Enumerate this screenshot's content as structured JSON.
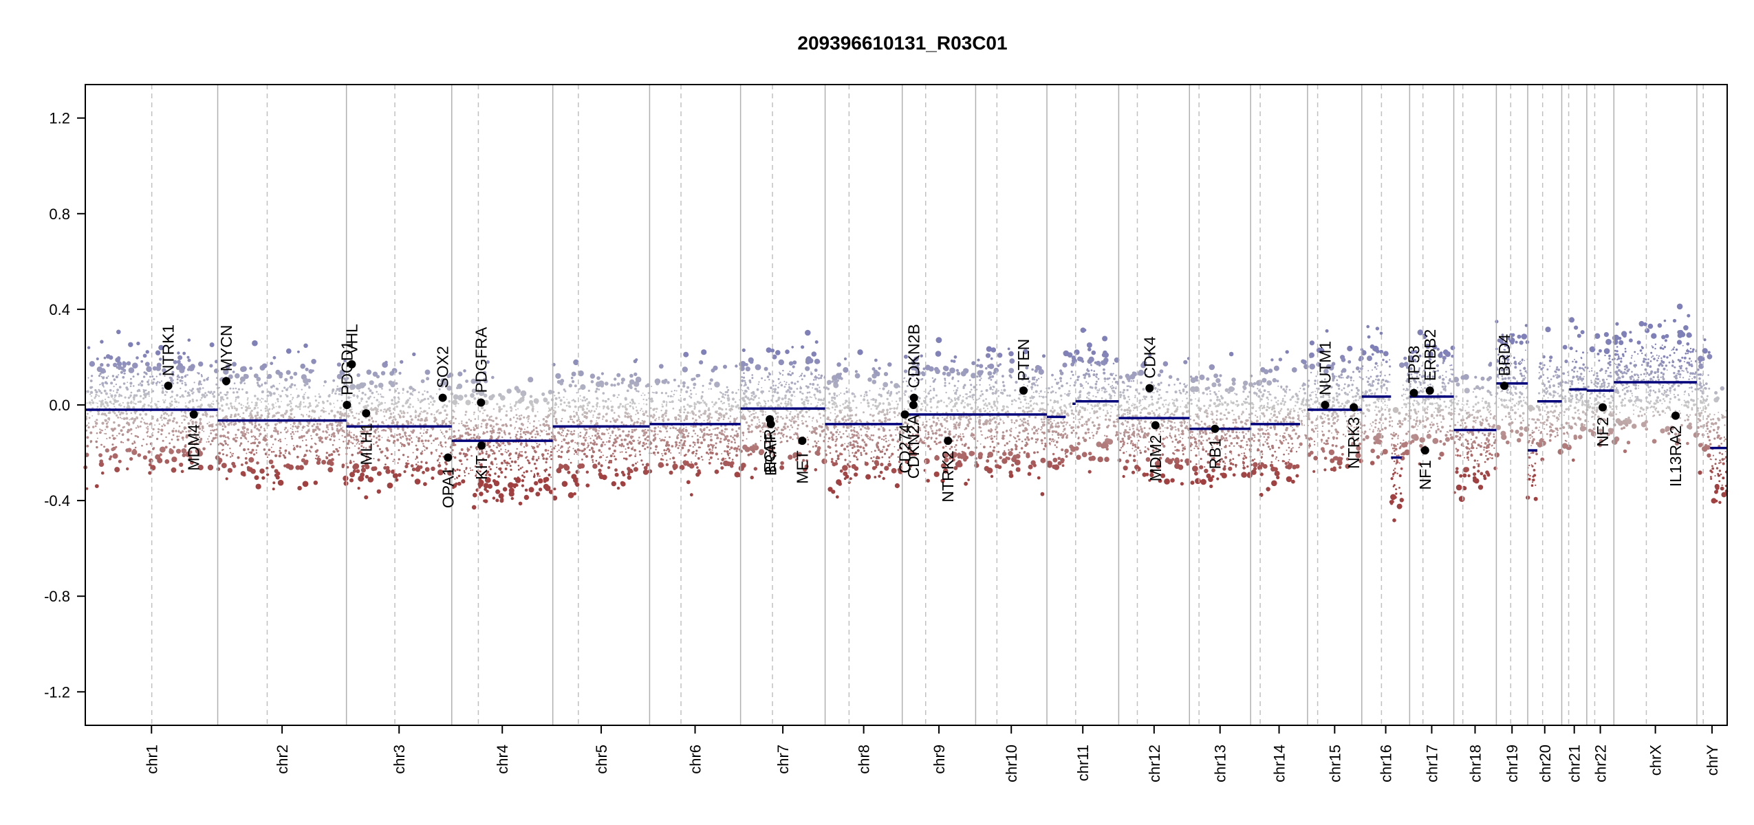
{
  "chart_data": {
    "type": "scatter",
    "title": "209396610131_R03C01",
    "xlabel": "",
    "ylabel": "",
    "ylim": [
      -1.34,
      1.34
    ],
    "yticks": [
      -1.2,
      -0.8,
      -0.4,
      0.0,
      0.4,
      0.8,
      1.2
    ],
    "ytick_labels": [
      "-1.2",
      "-0.8",
      "-0.4",
      "0.0",
      "0.4",
      "0.8",
      "1.2"
    ],
    "grid": false,
    "legend": "none",
    "colors": {
      "high": "#8080b8",
      "mid": "#c8c8c8",
      "low": "#a04040",
      "segment": "#00007a",
      "gene_point": "#000000"
    },
    "chromosomes": [
      {
        "name": "chr1",
        "start": 0.0,
        "end": 249.0,
        "centromere": 125.0
      },
      {
        "name": "chr2",
        "start": 249.0,
        "end": 491.0,
        "centromere": 342.0
      },
      {
        "name": "chr3",
        "start": 491.0,
        "end": 689.0,
        "centromere": 582.0
      },
      {
        "name": "chr4",
        "start": 689.0,
        "end": 879.0,
        "centromere": 739.0
      },
      {
        "name": "chr5",
        "start": 879.0,
        "end": 1061.0,
        "centromere": 927.0
      },
      {
        "name": "chr6",
        "start": 1061.0,
        "end": 1232.0,
        "centromere": 1120.0
      },
      {
        "name": "chr7",
        "start": 1232.0,
        "end": 1391.0,
        "centromere": 1292.0
      },
      {
        "name": "chr8",
        "start": 1391.0,
        "end": 1536.0,
        "centromere": 1436.0
      },
      {
        "name": "chr9",
        "start": 1536.0,
        "end": 1674.0,
        "centromere": 1580.0
      },
      {
        "name": "chr10",
        "start": 1674.0,
        "end": 1808.0,
        "centromere": 1714.0
      },
      {
        "name": "chr11",
        "start": 1808.0,
        "end": 1943.0,
        "centromere": 1862.0
      },
      {
        "name": "chr12",
        "start": 1943.0,
        "end": 2076.0,
        "centromere": 1978.0
      },
      {
        "name": "chr13",
        "start": 2076.0,
        "end": 2191.0,
        "centromere": 2094.0
      },
      {
        "name": "chr14",
        "start": 2191.0,
        "end": 2298.0,
        "centromere": 2209.0
      },
      {
        "name": "chr15",
        "start": 2298.0,
        "end": 2400.0,
        "centromere": 2317.0
      },
      {
        "name": "chr16",
        "start": 2400.0,
        "end": 2490.0,
        "centromere": 2437.0
      },
      {
        "name": "chr17",
        "start": 2490.0,
        "end": 2573.0,
        "centromere": 2515.0
      },
      {
        "name": "chr18",
        "start": 2573.0,
        "end": 2653.0,
        "centromere": 2590.0
      },
      {
        "name": "chr19",
        "start": 2653.0,
        "end": 2712.0,
        "centromere": 2680.0
      },
      {
        "name": "chr20",
        "start": 2712.0,
        "end": 2776.0,
        "centromere": 2740.0
      },
      {
        "name": "chr21",
        "start": 2776.0,
        "end": 2823.0,
        "centromere": 2789.0
      },
      {
        "name": "chr22",
        "start": 2823.0,
        "end": 2874.0,
        "centromere": 2838.0
      },
      {
        "name": "chrX",
        "start": 2874.0,
        "end": 3030.0,
        "centromere": 2935.0
      },
      {
        "name": "chrY",
        "start": 3030.0,
        "end": 3087.0,
        "centromere": 3042.0
      }
    ],
    "segments": [
      {
        "start": 0.0,
        "end": 249.0,
        "value": -0.02
      },
      {
        "start": 249.0,
        "end": 491.0,
        "value": -0.065
      },
      {
        "start": 491.0,
        "end": 582.0,
        "value": -0.09
      },
      {
        "start": 582.0,
        "end": 689.0,
        "value": -0.09
      },
      {
        "start": 689.0,
        "end": 879.0,
        "value": -0.15
      },
      {
        "start": 879.0,
        "end": 1061.0,
        "value": -0.09
      },
      {
        "start": 1061.0,
        "end": 1232.0,
        "value": -0.08
      },
      {
        "start": 1232.0,
        "end": 1391.0,
        "value": -0.015
      },
      {
        "start": 1391.0,
        "end": 1536.0,
        "value": -0.08
      },
      {
        "start": 1536.0,
        "end": 1674.0,
        "value": -0.04
      },
      {
        "start": 1674.0,
        "end": 1808.0,
        "value": -0.04
      },
      {
        "start": 1808.0,
        "end": 1843.0,
        "value": -0.05
      },
      {
        "start": 1856.0,
        "end": 1862.0,
        "value": 0.005
      },
      {
        "start": 1862.0,
        "end": 1943.0,
        "value": 0.015
      },
      {
        "start": 1943.0,
        "end": 2076.0,
        "value": -0.055
      },
      {
        "start": 2076.0,
        "end": 2191.0,
        "value": -0.1
      },
      {
        "start": 2191.0,
        "end": 2284.0,
        "value": -0.08
      },
      {
        "start": 2298.0,
        "end": 2400.0,
        "value": -0.02
      },
      {
        "start": 2400.0,
        "end": 2455.0,
        "value": 0.035
      },
      {
        "start": 2455.0,
        "end": 2475.0,
        "value": -0.22
      },
      {
        "start": 2490.0,
        "end": 2573.0,
        "value": 0.035
      },
      {
        "start": 2573.0,
        "end": 2653.0,
        "value": -0.105
      },
      {
        "start": 2653.0,
        "end": 2712.0,
        "value": 0.09
      },
      {
        "start": 2712.0,
        "end": 2730.0,
        "value": -0.19
      },
      {
        "start": 2730.0,
        "end": 2776.0,
        "value": 0.015
      },
      {
        "start": 2790.0,
        "end": 2823.0,
        "value": 0.065
      },
      {
        "start": 2823.0,
        "end": 2874.0,
        "value": 0.06
      },
      {
        "start": 2874.0,
        "end": 3030.0,
        "value": 0.095
      },
      {
        "start": 3055.0,
        "end": 3087.0,
        "value": -0.18
      }
    ],
    "genes": [
      {
        "name": "NTRK1",
        "pos": 156.0,
        "value": 0.08,
        "label": "above"
      },
      {
        "name": "MDM4",
        "pos": 204.0,
        "value": -0.04,
        "label": "below"
      },
      {
        "name": "MYCN",
        "pos": 265.0,
        "value": 0.1,
        "label": "above"
      },
      {
        "name": "PDGD1",
        "pos": 492.0,
        "value": 0.0,
        "label": "above"
      },
      {
        "name": "VHL",
        "pos": 501.0,
        "value": 0.17,
        "label": "above"
      },
      {
        "name": "MLH1",
        "pos": 528.0,
        "value": -0.035,
        "label": "below"
      },
      {
        "name": "SOX2",
        "pos": 672.0,
        "value": 0.03,
        "label": "above"
      },
      {
        "name": "OPA1",
        "pos": 682.0,
        "value": -0.22,
        "label": "below"
      },
      {
        "name": "PDGFRA",
        "pos": 744.0,
        "value": 0.01,
        "label": "above"
      },
      {
        "name": "KIT",
        "pos": 745.0,
        "value": -0.17,
        "label": "below"
      },
      {
        "name": "EGFR",
        "pos": 1287.0,
        "value": -0.06,
        "label": "below"
      },
      {
        "name": "BRAF",
        "pos": 1289.0,
        "value": -0.08,
        "label": "below"
      },
      {
        "name": "MET",
        "pos": 1348.0,
        "value": -0.15,
        "label": "below"
      },
      {
        "name": "CD274",
        "pos": 1541.0,
        "value": -0.04,
        "label": "below"
      },
      {
        "name": "CDKN2A",
        "pos": 1557.0,
        "value": 0.0,
        "label": "below"
      },
      {
        "name": "CDKN2B",
        "pos": 1558.0,
        "value": 0.03,
        "label": "above"
      },
      {
        "name": "NTRK2",
        "pos": 1622.0,
        "value": -0.15,
        "label": "below"
      },
      {
        "name": "PTEN",
        "pos": 1764.0,
        "value": 0.06,
        "label": "above"
      },
      {
        "name": "CDK4",
        "pos": 2001.0,
        "value": 0.07,
        "label": "above"
      },
      {
        "name": "MDM2",
        "pos": 2012.0,
        "value": -0.085,
        "label": "below"
      },
      {
        "name": "RB1",
        "pos": 2124.0,
        "value": -0.1,
        "label": "below"
      },
      {
        "name": "NUTM1",
        "pos": 2331.0,
        "value": 0.0,
        "label": "above"
      },
      {
        "name": "NTRK3",
        "pos": 2385.0,
        "value": -0.01,
        "label": "below"
      },
      {
        "name": "TP53",
        "pos": 2498.0,
        "value": 0.05,
        "label": "above"
      },
      {
        "name": "NF1",
        "pos": 2519.0,
        "value": -0.19,
        "label": "below"
      },
      {
        "name": "ERBB2",
        "pos": 2528.0,
        "value": 0.06,
        "label": "above"
      },
      {
        "name": "BRD4",
        "pos": 2668.0,
        "value": 0.08,
        "label": "above"
      },
      {
        "name": "NF2",
        "pos": 2853.0,
        "value": -0.01,
        "label": "below"
      },
      {
        "name": "IL13RA2",
        "pos": 2990.0,
        "value": -0.045,
        "label": "below"
      }
    ]
  }
}
